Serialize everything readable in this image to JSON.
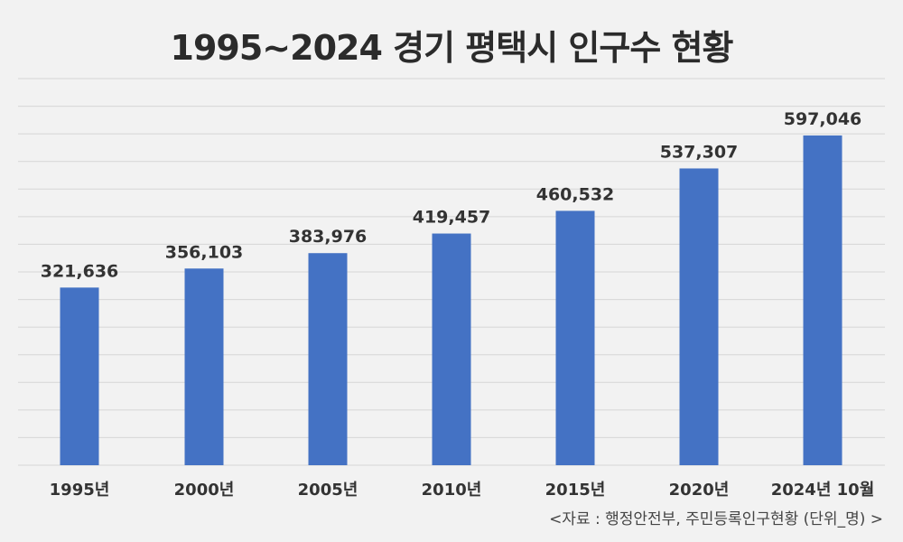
{
  "chart_data": {
    "type": "bar",
    "title": "1995~2024 경기 평택시 인구수 현황",
    "source": "<자료 : 행정안전부, 주민등록인구현황 (단위_명) >",
    "categories": [
      "1995년",
      "2000년",
      "2005년",
      "2010년",
      "2015년",
      "2020년",
      "2024년 10월"
    ],
    "values": [
      321636,
      356103,
      383976,
      419457,
      460532,
      537307,
      597046
    ],
    "value_labels": [
      "321,636",
      "356,103",
      "383,976",
      "419,457",
      "460,532",
      "537,307",
      "597,046"
    ],
    "ylim": [
      0,
      700000
    ],
    "grid": true,
    "color": "#4472c4"
  }
}
